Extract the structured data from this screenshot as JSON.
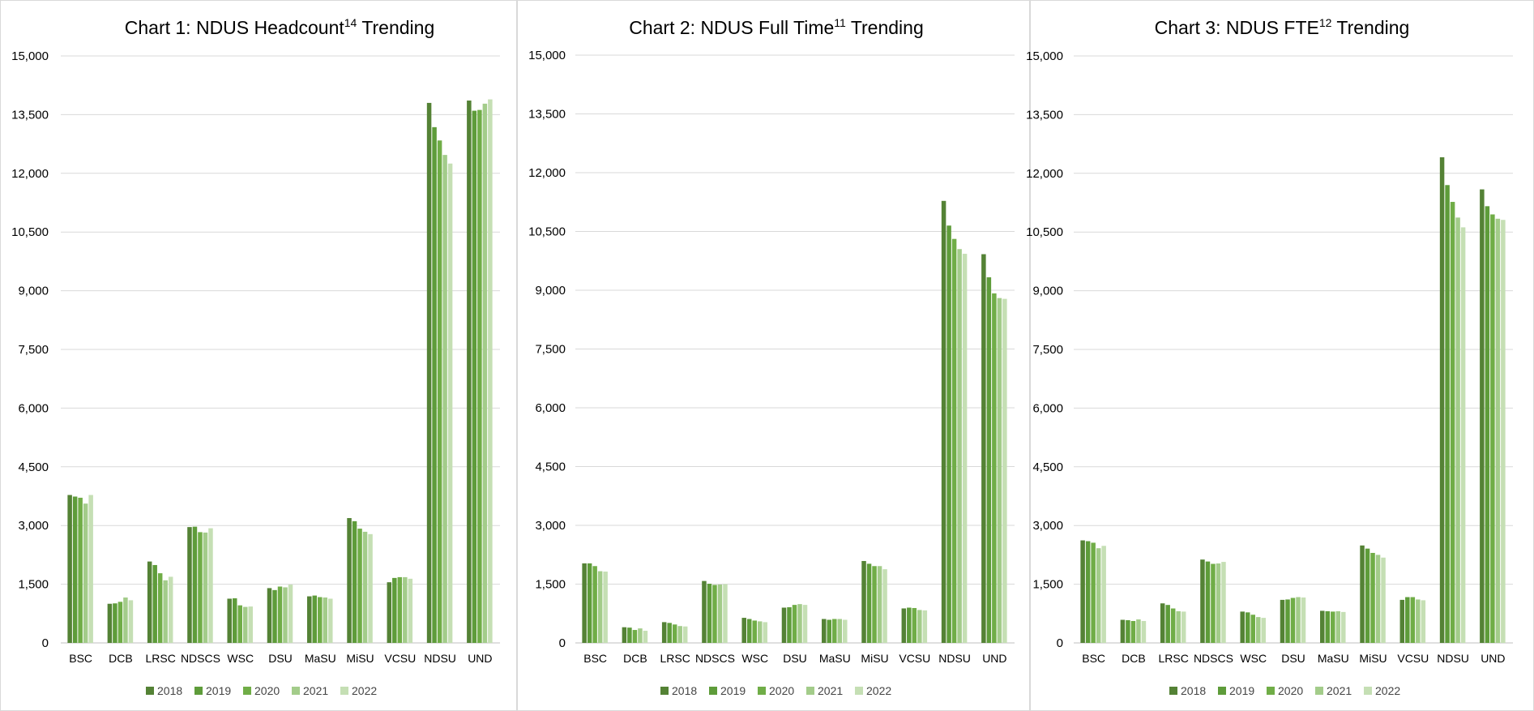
{
  "colors": [
    "#548235",
    "#5e9c3a",
    "#70ad47",
    "#a3cc8a",
    "#c5dfb4"
  ],
  "chart_data": [
    {
      "type": "bar",
      "title": "Chart 1: NDUS Headcount",
      "title_sup": "14",
      "title_suffix": " Trending",
      "categories": [
        "BSC",
        "DCB",
        "LRSC",
        "NDSCS",
        "WSC",
        "DSU",
        "MaSU",
        "MiSU",
        "VCSU",
        "NDSU",
        "UND"
      ],
      "ylim": [
        0,
        15000
      ],
      "yticks": [
        "0",
        "1,500",
        "3,000",
        "4,500",
        "6,000",
        "7,500",
        "9,000",
        "10,500",
        "12,000",
        "13,500",
        "15,000"
      ],
      "grid": true,
      "legend_position": "bottom",
      "series": [
        {
          "name": "2018",
          "values": [
            3780,
            1000,
            2080,
            2960,
            1130,
            1400,
            1190,
            3190,
            1550,
            13800,
            13860
          ]
        },
        {
          "name": "2019",
          "values": [
            3740,
            1010,
            1990,
            2970,
            1140,
            1350,
            1210,
            3110,
            1660,
            13180,
            13600
          ]
        },
        {
          "name": "2020",
          "values": [
            3710,
            1050,
            1780,
            2830,
            960,
            1440,
            1170,
            2920,
            1680,
            12840,
            13620
          ]
        },
        {
          "name": "2021",
          "values": [
            3560,
            1160,
            1600,
            2820,
            920,
            1420,
            1160,
            2840,
            1680,
            12470,
            13780
          ]
        },
        {
          "name": "2022",
          "values": [
            3780,
            1090,
            1690,
            2930,
            930,
            1490,
            1130,
            2780,
            1640,
            12250,
            13890
          ]
        }
      ]
    },
    {
      "type": "bar",
      "title": "Chart 2: NDUS Full Time",
      "title_sup": "11",
      "title_suffix": " Trending",
      "categories": [
        "BSC",
        "DCB",
        "LRSC",
        "NDSCS",
        "WSC",
        "DSU",
        "MaSU",
        "MiSU",
        "VCSU",
        "NDSU",
        "UND"
      ],
      "ylim": [
        0,
        15000
      ],
      "yticks": [
        "0",
        "1,500",
        "3,000",
        "4,500",
        "6,000",
        "7,500",
        "9,000",
        "10,500",
        "12,000",
        "13,500",
        "15,000"
      ],
      "grid": true,
      "legend_position": "bottom",
      "series": [
        {
          "name": "2018",
          "values": [
            2030,
            400,
            530,
            1580,
            640,
            900,
            610,
            2090,
            880,
            11280,
            9920
          ]
        },
        {
          "name": "2019",
          "values": [
            2030,
            390,
            510,
            1510,
            610,
            910,
            590,
            2020,
            900,
            10650,
            9330
          ]
        },
        {
          "name": "2020",
          "values": [
            1960,
            330,
            470,
            1480,
            570,
            970,
            610,
            1960,
            890,
            10310,
            8920
          ]
        },
        {
          "name": "2021",
          "values": [
            1830,
            370,
            430,
            1490,
            550,
            990,
            610,
            1960,
            840,
            10050,
            8800
          ]
        },
        {
          "name": "2022",
          "values": [
            1820,
            310,
            420,
            1500,
            530,
            970,
            590,
            1880,
            830,
            9930,
            8780
          ]
        }
      ]
    },
    {
      "type": "bar",
      "title": "Chart 3: NDUS FTE",
      "title_sup": "12",
      "title_suffix": " Trending",
      "categories": [
        "BSC",
        "DCB",
        "LRSC",
        "NDSCS",
        "WSC",
        "DSU",
        "MaSU",
        "MiSU",
        "VCSU",
        "NDSU",
        "UND"
      ],
      "ylim": [
        0,
        15000
      ],
      "yticks": [
        "0",
        "1,500",
        "3,000",
        "4,500",
        "6,000",
        "7,500",
        "9,000",
        "10,500",
        "12,000",
        "13,500",
        "15,000"
      ],
      "grid": true,
      "legend_position": "bottom",
      "series": [
        {
          "name": "2018",
          "values": [
            2620,
            590,
            1010,
            2130,
            800,
            1100,
            820,
            2490,
            1100,
            12410,
            11590
          ]
        },
        {
          "name": "2019",
          "values": [
            2600,
            580,
            970,
            2080,
            780,
            1110,
            810,
            2410,
            1170,
            11700,
            11160
          ]
        },
        {
          "name": "2020",
          "values": [
            2560,
            560,
            880,
            2020,
            720,
            1150,
            800,
            2300,
            1170,
            11270,
            10950
          ]
        },
        {
          "name": "2021",
          "values": [
            2420,
            600,
            810,
            2030,
            660,
            1170,
            810,
            2250,
            1110,
            10870,
            10840
          ]
        },
        {
          "name": "2022",
          "values": [
            2480,
            560,
            800,
            2070,
            640,
            1160,
            790,
            2180,
            1090,
            10620,
            10810
          ]
        }
      ]
    }
  ]
}
